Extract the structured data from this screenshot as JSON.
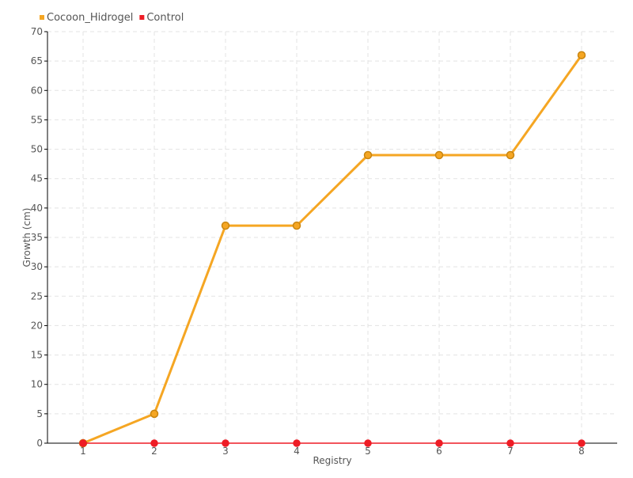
{
  "chart_data": {
    "type": "line",
    "title": "",
    "xlabel": "Registry",
    "ylabel": "Growth (cm)",
    "x": [
      1,
      2,
      3,
      4,
      5,
      6,
      7,
      8
    ],
    "xlim": [
      0.5,
      8.5
    ],
    "ylim": [
      0,
      70
    ],
    "yticks": [
      0,
      5,
      10,
      15,
      20,
      25,
      30,
      35,
      40,
      45,
      50,
      55,
      60,
      65,
      70
    ],
    "grid": true,
    "legend_placement": "top-left",
    "series": [
      {
        "name": "Cocoon_Hidrogel",
        "color": "#f5a623",
        "values": [
          0,
          5,
          37,
          37,
          49,
          49,
          49,
          66
        ]
      },
      {
        "name": "Control",
        "color": "#ee1c25",
        "values": [
          0,
          0,
          0,
          0,
          0,
          0,
          0,
          0
        ]
      }
    ]
  }
}
